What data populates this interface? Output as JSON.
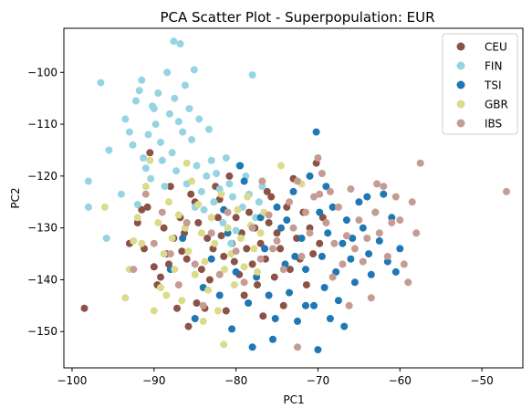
{
  "chart_data": {
    "type": "scatter",
    "title": "PCA Scatter Plot - Superpopulation: EUR",
    "xlabel": "PC1",
    "ylabel": "PC2",
    "xlim": [
      -101,
      -45
    ],
    "ylim": [
      -157,
      -91.5
    ],
    "xticks": [
      -100,
      -90,
      -80,
      -70,
      -60,
      -50
    ],
    "yticks": [
      -150,
      -140,
      -130,
      -120,
      -110,
      -100
    ],
    "grid": false,
    "legend_position": "top-right",
    "series": [
      {
        "name": "CEU",
        "color": "#8b5346",
        "points": [
          [
            -98.5,
            -145.5
          ],
          [
            -93,
            -133
          ],
          [
            -92,
            -129
          ],
          [
            -91.2,
            -134
          ],
          [
            -90.8,
            -126
          ],
          [
            -90.5,
            -115.5
          ],
          [
            -90,
            -137.5
          ],
          [
            -89.6,
            -141
          ],
          [
            -89.2,
            -139.5
          ],
          [
            -88.8,
            -130
          ],
          [
            -88.5,
            -135
          ],
          [
            -88,
            -122
          ],
          [
            -87.6,
            -132
          ],
          [
            -87.2,
            -145.5
          ],
          [
            -86.8,
            -128
          ],
          [
            -86.3,
            -131
          ],
          [
            -86,
            -136
          ],
          [
            -85.5,
            -123.5
          ],
          [
            -85,
            -125
          ],
          [
            -84.6,
            -129
          ],
          [
            -84.2,
            -138
          ],
          [
            -83.8,
            -145.5
          ],
          [
            -83.5,
            -132
          ],
          [
            -83.2,
            -140
          ],
          [
            -82.8,
            -134
          ],
          [
            -82.5,
            -122
          ],
          [
            -82.2,
            -128
          ],
          [
            -81.8,
            -131.5
          ],
          [
            -81.5,
            -135.5
          ],
          [
            -81.2,
            -146
          ],
          [
            -80.8,
            -120
          ],
          [
            -80.5,
            -133
          ],
          [
            -80.2,
            -136.5
          ],
          [
            -80,
            -128
          ],
          [
            -79.6,
            -139
          ],
          [
            -79.3,
            -131
          ],
          [
            -79,
            -143
          ],
          [
            -78.7,
            -134
          ],
          [
            -78.4,
            -127
          ],
          [
            -78,
            -137
          ],
          [
            -77.7,
            -130
          ],
          [
            -77.4,
            -141
          ],
          [
            -77,
            -133
          ],
          [
            -76.7,
            -147
          ],
          [
            -76.4,
            -136
          ],
          [
            -76,
            -129
          ],
          [
            -75.7,
            -124
          ],
          [
            -75.3,
            -139.5
          ],
          [
            -75,
            -131
          ],
          [
            -74.6,
            -134
          ],
          [
            -74.2,
            -145
          ],
          [
            -73.8,
            -126
          ],
          [
            -73.4,
            -138
          ],
          [
            -73,
            -120.5
          ],
          [
            -72.6,
            -132
          ],
          [
            -72.2,
            -136
          ],
          [
            -71.8,
            -127
          ],
          [
            -71.4,
            -141
          ],
          [
            -71,
            -130
          ],
          [
            -70.6,
            -135
          ],
          [
            -70.2,
            -117.5
          ],
          [
            -69.8,
            -133
          ],
          [
            -69.4,
            -128
          ],
          [
            -85.8,
            -149
          ],
          [
            -84.8,
            -144.5
          ],
          [
            -82,
            -124.5
          ],
          [
            -76.2,
            -123
          ],
          [
            -88.2,
            -137
          ],
          [
            -91.5,
            -126.5
          ],
          [
            -86.6,
            -134.5
          ]
        ]
      },
      {
        "name": "FIN",
        "color": "#96d4e3",
        "points": [
          [
            -98,
            -121
          ],
          [
            -98,
            -126
          ],
          [
            -96.5,
            -102
          ],
          [
            -95.8,
            -132
          ],
          [
            -95.5,
            -115
          ],
          [
            -94,
            -123.5
          ],
          [
            -93.5,
            -109
          ],
          [
            -93,
            -111.5
          ],
          [
            -92.6,
            -114
          ],
          [
            -92.2,
            -105.5
          ],
          [
            -91.8,
            -103.5
          ],
          [
            -91.5,
            -101.5
          ],
          [
            -91.3,
            -116.5
          ],
          [
            -91,
            -118.5
          ],
          [
            -90.7,
            -112
          ],
          [
            -90.4,
            -120.5
          ],
          [
            -90,
            -107
          ],
          [
            -89.8,
            -110
          ],
          [
            -89.5,
            -104
          ],
          [
            -89.2,
            -113.5
          ],
          [
            -89,
            -117
          ],
          [
            -88.7,
            -122
          ],
          [
            -88.4,
            -100
          ],
          [
            -88.1,
            -108
          ],
          [
            -87.8,
            -115.5
          ],
          [
            -87.5,
            -105
          ],
          [
            -87.3,
            -119
          ],
          [
            -87,
            -109.5
          ],
          [
            -86.8,
            -94.5
          ],
          [
            -86.5,
            -111.5
          ],
          [
            -86.2,
            -102.5
          ],
          [
            -86,
            -121.5
          ],
          [
            -85.7,
            -107
          ],
          [
            -85.4,
            -113
          ],
          [
            -85.1,
            -99.5
          ],
          [
            -84.8,
            -118
          ],
          [
            -84.5,
            -109
          ],
          [
            -84.2,
            -123
          ],
          [
            -83.9,
            -126.5
          ],
          [
            -83.6,
            -120
          ],
          [
            -83.3,
            -111
          ],
          [
            -83,
            -117
          ],
          [
            -82.7,
            -125
          ],
          [
            -82.4,
            -119.5
          ],
          [
            -82,
            -122.5
          ],
          [
            -81.6,
            -129
          ],
          [
            -81.2,
            -116.5
          ],
          [
            -80.8,
            -121.5
          ],
          [
            -80.4,
            -124
          ],
          [
            -80,
            -130.5
          ],
          [
            -79.6,
            -118
          ],
          [
            -79.2,
            -126
          ],
          [
            -78.8,
            -120
          ],
          [
            -78.4,
            -123.5
          ],
          [
            -78,
            -100.5
          ],
          [
            -77.6,
            -128
          ],
          [
            -77.2,
            -125
          ],
          [
            -76.8,
            -122
          ],
          [
            -87.6,
            -94
          ],
          [
            -90.2,
            -106.5
          ],
          [
            -92,
            -125.5
          ],
          [
            -85,
            -126
          ],
          [
            -80.6,
            -133
          ]
        ]
      },
      {
        "name": "TSI",
        "color": "#1f77b4",
        "points": [
          [
            -88,
            -138
          ],
          [
            -86.5,
            -132
          ],
          [
            -85,
            -147.5
          ],
          [
            -84,
            -141.5
          ],
          [
            -83,
            -136
          ],
          [
            -82,
            -143
          ],
          [
            -81.5,
            -126.5
          ],
          [
            -81,
            -131
          ],
          [
            -80.5,
            -149.5
          ],
          [
            -80,
            -138.5
          ],
          [
            -79.5,
            -118
          ],
          [
            -79,
            -121
          ],
          [
            -78.5,
            -144.5
          ],
          [
            -78,
            -153
          ],
          [
            -77.5,
            -139.5
          ],
          [
            -77,
            -128
          ],
          [
            -76.5,
            -134
          ],
          [
            -76,
            -143
          ],
          [
            -75.5,
            -151.5
          ],
          [
            -75,
            -126
          ],
          [
            -74.5,
            -130
          ],
          [
            -74,
            -137
          ],
          [
            -73.5,
            -142.5
          ],
          [
            -73,
            -123
          ],
          [
            -72.5,
            -148
          ],
          [
            -72,
            -132
          ],
          [
            -71.5,
            -138
          ],
          [
            -71,
            -120
          ],
          [
            -70.5,
            -145
          ],
          [
            -70.2,
            -111.5
          ],
          [
            -69.8,
            -127
          ],
          [
            -69.5,
            -135.5
          ],
          [
            -69.2,
            -141.5
          ],
          [
            -68.8,
            -131
          ],
          [
            -68.5,
            -147.5
          ],
          [
            -68.2,
            -126
          ],
          [
            -67.8,
            -138.5
          ],
          [
            -67.5,
            -144
          ],
          [
            -67,
            -133
          ],
          [
            -66.5,
            -128.5
          ],
          [
            -66,
            -136
          ],
          [
            -65.5,
            -140.5
          ],
          [
            -65,
            -125
          ],
          [
            -64.5,
            -130
          ],
          [
            -64,
            -124
          ],
          [
            -63.5,
            -139
          ],
          [
            -63,
            -127
          ],
          [
            -62.5,
            -132.5
          ],
          [
            -62,
            -123.5
          ],
          [
            -61.5,
            -136.5
          ],
          [
            -61,
            -128
          ],
          [
            -60.5,
            -138.5
          ],
          [
            -60,
            -134
          ],
          [
            -70,
            -153.5
          ],
          [
            -71.5,
            -145
          ],
          [
            -75.2,
            -147.5
          ],
          [
            -73.8,
            -128.5
          ],
          [
            -72.8,
            -135.5
          ],
          [
            -69,
            -122
          ],
          [
            -66.8,
            -149
          ],
          [
            -65.8,
            -132
          ],
          [
            -63.8,
            -135
          ]
        ]
      },
      {
        "name": "GBR",
        "color": "#dbdb8d",
        "points": [
          [
            -96,
            -126
          ],
          [
            -93.5,
            -143.5
          ],
          [
            -93,
            -138
          ],
          [
            -92.5,
            -132.5
          ],
          [
            -92,
            -128
          ],
          [
            -91.5,
            -133
          ],
          [
            -91,
            -122
          ],
          [
            -90.5,
            -117
          ],
          [
            -90,
            -146
          ],
          [
            -89.5,
            -129
          ],
          [
            -89.2,
            -141.5
          ],
          [
            -88.8,
            -135
          ],
          [
            -88.5,
            -143
          ],
          [
            -88.2,
            -125
          ],
          [
            -87.8,
            -132
          ],
          [
            -87.5,
            -138
          ],
          [
            -87,
            -127.5
          ],
          [
            -86.6,
            -144
          ],
          [
            -86.2,
            -130
          ],
          [
            -85.8,
            -134.5
          ],
          [
            -85.4,
            -121
          ],
          [
            -85,
            -139
          ],
          [
            -84.6,
            -125.5
          ],
          [
            -84.2,
            -131
          ],
          [
            -83.8,
            -136.5
          ],
          [
            -83.4,
            -142
          ],
          [
            -83,
            -128
          ],
          [
            -82.6,
            -133
          ],
          [
            -82.2,
            -146
          ],
          [
            -81.8,
            -123.5
          ],
          [
            -81.4,
            -138
          ],
          [
            -81,
            -130
          ],
          [
            -80.6,
            -135
          ],
          [
            -80.2,
            -141
          ],
          [
            -79.8,
            -126.5
          ],
          [
            -79.4,
            -132
          ],
          [
            -79,
            -137.5
          ],
          [
            -78.6,
            -124
          ],
          [
            -78.2,
            -129.5
          ],
          [
            -77.8,
            -134
          ],
          [
            -77.4,
            -138.5
          ],
          [
            -77,
            -131
          ],
          [
            -76.6,
            -127
          ],
          [
            -81.5,
            -152.5
          ],
          [
            -74.5,
            -118
          ],
          [
            -72,
            -121.5
          ],
          [
            -86,
            -117.5
          ],
          [
            -84,
            -148
          ]
        ]
      },
      {
        "name": "IBS",
        "color": "#c49c94",
        "points": [
          [
            -92.5,
            -138
          ],
          [
            -91,
            -123.5
          ],
          [
            -90,
            -133
          ],
          [
            -89,
            -127
          ],
          [
            -88,
            -135
          ],
          [
            -87,
            -141
          ],
          [
            -86,
            -129
          ],
          [
            -85,
            -137
          ],
          [
            -84,
            -145
          ],
          [
            -83,
            -131
          ],
          [
            -82,
            -139
          ],
          [
            -81,
            -127
          ],
          [
            -80,
            -134.5
          ],
          [
            -79,
            -140.5
          ],
          [
            -78,
            -130
          ],
          [
            -77,
            -136
          ],
          [
            -76,
            -127.5
          ],
          [
            -75,
            -132.5
          ],
          [
            -74.2,
            -138
          ],
          [
            -73.5,
            -125
          ],
          [
            -73,
            -130
          ],
          [
            -72.5,
            -121
          ],
          [
            -72,
            -135.5
          ],
          [
            -71.5,
            -127
          ],
          [
            -71,
            -131
          ],
          [
            -70.5,
            -124
          ],
          [
            -70,
            -116.5
          ],
          [
            -69.5,
            -119.5
          ],
          [
            -69,
            -129
          ],
          [
            -68.5,
            -123
          ],
          [
            -68,
            -133
          ],
          [
            -67.5,
            -126
          ],
          [
            -67,
            -137
          ],
          [
            -66.5,
            -131.5
          ],
          [
            -66,
            -122.5
          ],
          [
            -65.5,
            -134
          ],
          [
            -65,
            -128.5
          ],
          [
            -64.5,
            -136.5
          ],
          [
            -64,
            -132
          ],
          [
            -63.5,
            -143.5
          ],
          [
            -63,
            -127
          ],
          [
            -62.5,
            -131
          ],
          [
            -62,
            -122
          ],
          [
            -61.5,
            -135.5
          ],
          [
            -61,
            -129
          ],
          [
            -60.5,
            -124
          ],
          [
            -60,
            -128.5
          ],
          [
            -59.5,
            -137
          ],
          [
            -59,
            -140.5
          ],
          [
            -58.5,
            -125
          ],
          [
            -58,
            -131
          ],
          [
            -57.5,
            -117.5
          ],
          [
            -47,
            -123
          ],
          [
            -72.5,
            -153
          ],
          [
            -75.5,
            -134
          ],
          [
            -68.2,
            -139.5
          ],
          [
            -66.2,
            -145
          ],
          [
            -69.8,
            -123.5
          ],
          [
            -62.8,
            -121.5
          ],
          [
            -76.8,
            -121
          ]
        ]
      }
    ]
  }
}
